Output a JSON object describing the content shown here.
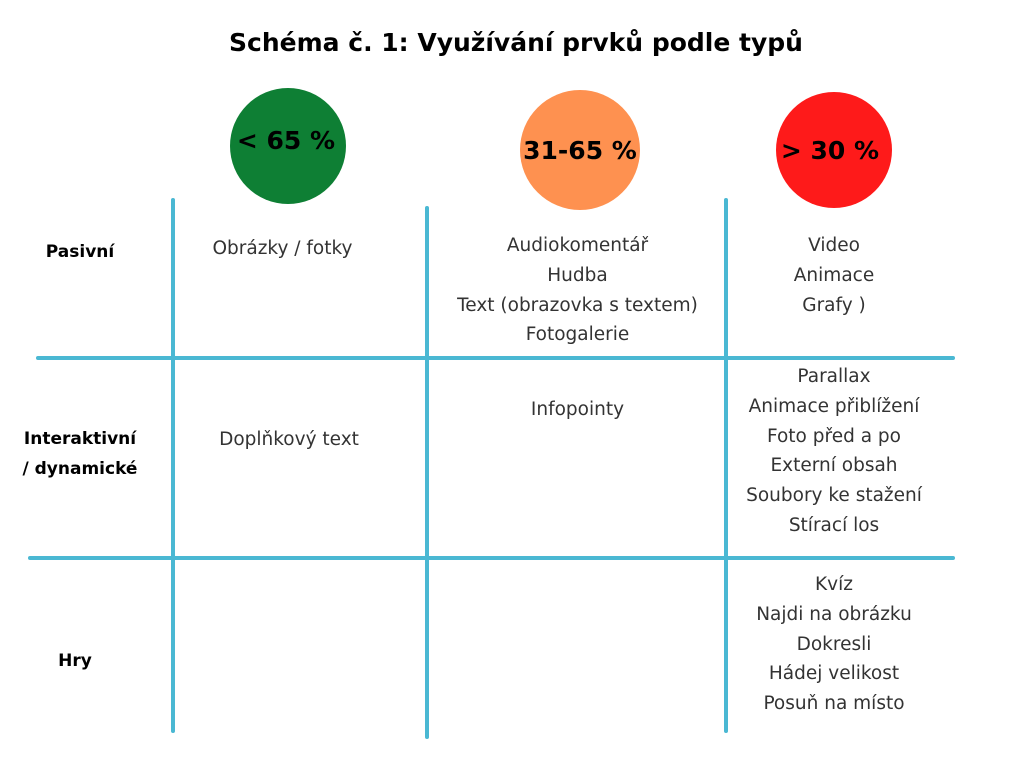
{
  "title": "Schéma č. 1: Využívání prvků podle typů",
  "colors": {
    "line": "#4ab8d3",
    "green": "#0e7f34",
    "orange": "#fe9150",
    "red": "#fe1a1a"
  },
  "legend": [
    {
      "label": "< 65 %",
      "color": "#0e7f34"
    },
    {
      "label": "31-65 %",
      "color": "#fe9150"
    },
    {
      "label": "> 30 %",
      "color": "#fe1a1a"
    }
  ],
  "rows": [
    {
      "label_lines": [
        "Pasivní"
      ],
      "cells": [
        [
          "Obrázky / fotky"
        ],
        [
          "Audiokomentář",
          "Hudba",
          "Text (obrazovka s textem)",
          "Fotogalerie"
        ],
        [
          "Video",
          "Animace",
          "Grafy )"
        ]
      ]
    },
    {
      "label_lines": [
        "Interaktivní",
        "/ dynamické"
      ],
      "cells": [
        [
          "Doplňkový text"
        ],
        [
          "Infopointy"
        ],
        [
          "Parallax",
          "Animace přiblížení",
          "Foto před a po",
          "Externí obsah",
          "Soubory ke stažení",
          "Stírací los"
        ]
      ]
    },
    {
      "label_lines": [
        "Hry"
      ],
      "cells": [
        [],
        [],
        [
          "Kvíz",
          "Najdi na obrázku",
          "Dokresli",
          "Hádej velikost",
          "Posuň na místo"
        ]
      ]
    }
  ]
}
